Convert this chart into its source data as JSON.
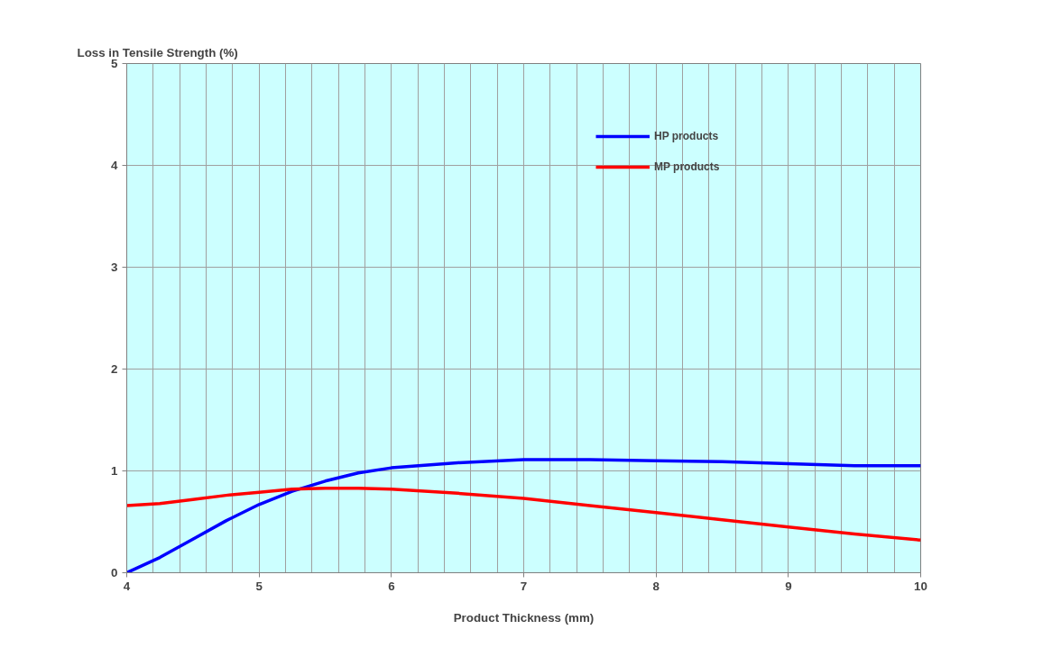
{
  "chart_data": {
    "type": "line",
    "xlabel": "Product Thickness (mm)",
    "ylabel": "Loss in Tensile Strength (%)",
    "xlim": [
      4,
      10
    ],
    "ylim": [
      0,
      5
    ],
    "xticks": [
      4,
      5,
      6,
      7,
      8,
      9,
      10
    ],
    "yticks": [
      0,
      1,
      2,
      3,
      4,
      5
    ],
    "grid": true,
    "legend": "top right",
    "marker": "none",
    "line_style": "solid",
    "series": [
      {
        "name": "HP products",
        "color": "#0000ff",
        "x": [
          4,
          4.25,
          4.5,
          4.75,
          5,
          5.25,
          5.5,
          5.75,
          6,
          6.5,
          7,
          7.5,
          8,
          8.5,
          9,
          9.5,
          10
        ],
        "values": [
          0,
          0.15,
          0.33,
          0.51,
          0.67,
          0.8,
          0.9,
          0.98,
          1.03,
          1.08,
          1.11,
          1.11,
          1.1,
          1.09,
          1.07,
          1.05,
          1.05
        ]
      },
      {
        "name": "MP products",
        "color": "#ff0000",
        "x": [
          4,
          4.25,
          4.5,
          4.75,
          5,
          5.25,
          5.5,
          5.75,
          6,
          6.25,
          6.5,
          7,
          7.5,
          8,
          8.5,
          9,
          9.5,
          10
        ],
        "values": [
          0.66,
          0.68,
          0.72,
          0.76,
          0.79,
          0.82,
          0.83,
          0.83,
          0.82,
          0.8,
          0.78,
          0.73,
          0.66,
          0.59,
          0.52,
          0.45,
          0.38,
          0.32
        ]
      }
    ]
  }
}
